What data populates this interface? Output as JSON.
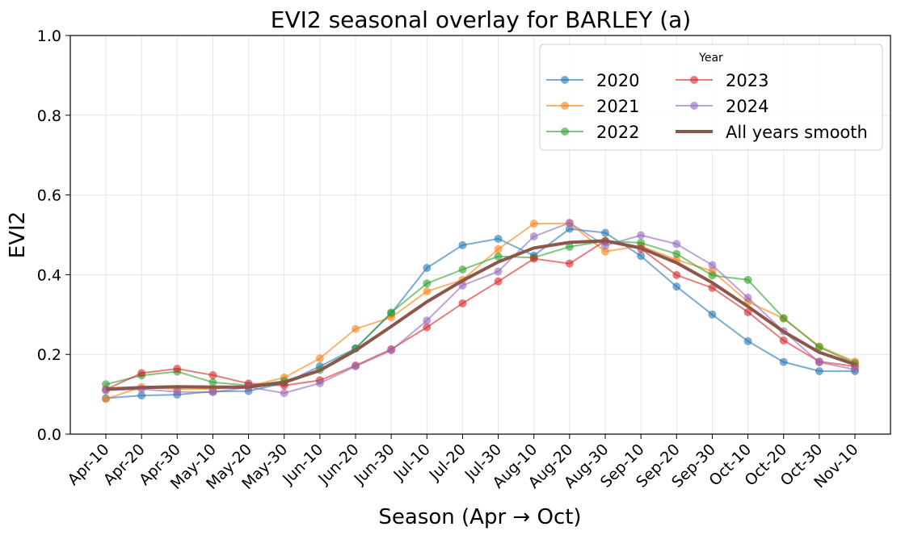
{
  "chart_data": {
    "type": "line",
    "title": "EVI2 seasonal overlay for BARLEY (a)",
    "xlabel": "Season (Apr → Oct)",
    "ylabel": "EVI2",
    "ylim": [
      0.0,
      1.0
    ],
    "yticks": [
      "0.0",
      "0.2",
      "0.4",
      "0.6",
      "0.8",
      "1.0"
    ],
    "grid": true,
    "legend": {
      "title": "Year",
      "placement": "top-right"
    },
    "categories": [
      "Apr-10",
      "Apr-20",
      "Apr-30",
      "May-10",
      "May-20",
      "May-30",
      "Jun-10",
      "Jun-20",
      "Jun-30",
      "Jul-10",
      "Jul-20",
      "Jul-30",
      "Aug-10",
      "Aug-20",
      "Aug-30",
      "Sep-10",
      "Sep-20",
      "Sep-30",
      "Oct-10",
      "Oct-20",
      "Oct-30",
      "Nov-10"
    ],
    "series": [
      {
        "name": "2020",
        "color": "#1f77b4",
        "values": [
          0.09,
          0.097,
          0.099,
          0.107,
          0.108,
          0.128,
          0.17,
          0.215,
          0.303,
          0.417,
          0.474,
          0.49,
          0.448,
          0.515,
          0.505,
          0.447,
          0.37,
          0.3,
          0.233,
          0.181,
          0.158,
          0.158
        ]
      },
      {
        "name": "2021",
        "color": "#ff7f0e",
        "values": [
          0.088,
          0.118,
          0.113,
          0.113,
          0.12,
          0.142,
          0.19,
          0.264,
          0.293,
          0.358,
          0.387,
          0.464,
          0.528,
          0.529,
          0.458,
          0.472,
          0.437,
          0.409,
          0.332,
          0.29,
          0.22,
          0.182
        ]
      },
      {
        "name": "2022",
        "color": "#2ca02c",
        "values": [
          0.125,
          0.147,
          0.157,
          0.13,
          0.122,
          0.133,
          0.161,
          0.215,
          0.305,
          0.378,
          0.413,
          0.446,
          0.443,
          0.47,
          0.484,
          0.48,
          0.452,
          0.398,
          0.387,
          0.291,
          0.218,
          0.178
        ]
      },
      {
        "name": "2023",
        "color": "#d62728",
        "values": [
          0.112,
          0.153,
          0.164,
          0.148,
          0.127,
          0.122,
          0.135,
          0.172,
          0.213,
          0.268,
          0.328,
          0.383,
          0.44,
          0.428,
          0.485,
          0.465,
          0.399,
          0.367,
          0.306,
          0.235,
          0.182,
          0.17
        ]
      },
      {
        "name": "2024",
        "color": "#9467bd",
        "values": [
          0.11,
          0.113,
          0.106,
          0.105,
          0.118,
          0.103,
          0.128,
          0.17,
          0.21,
          0.285,
          0.373,
          0.408,
          0.496,
          0.53,
          0.473,
          0.499,
          0.477,
          0.424,
          0.342,
          0.258,
          0.18,
          0.162
        ]
      },
      {
        "name": "All years smooth",
        "color": "#8c564b",
        "values": [
          0.113,
          0.117,
          0.119,
          0.118,
          0.118,
          0.13,
          0.16,
          0.21,
          0.27,
          0.332,
          0.385,
          0.432,
          0.467,
          0.481,
          0.485,
          0.467,
          0.43,
          0.38,
          0.32,
          0.257,
          0.205,
          0.175
        ]
      }
    ]
  }
}
